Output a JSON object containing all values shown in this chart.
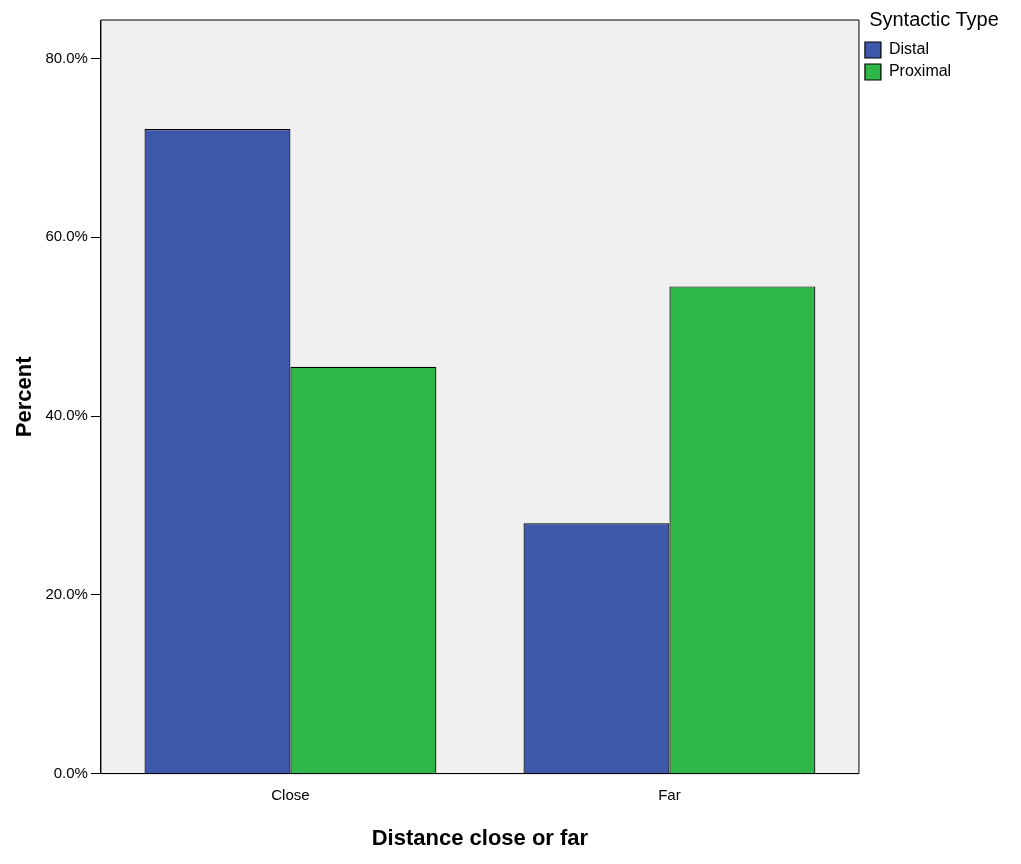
{
  "chart_data": {
    "type": "bar",
    "xlabel": "Distance close or far",
    "ylabel": "Percent",
    "legend_title": "Syntactic Type",
    "legend": "top right",
    "grid": false,
    "categories": [
      "Close",
      "Far"
    ],
    "series": [
      {
        "name": "Distal",
        "color": "#3e58ac",
        "values": [
          72.1,
          28.0
        ]
      },
      {
        "name": "Proximal",
        "color": "#2eb84a",
        "values": [
          45.5,
          54.5
        ]
      }
    ],
    "ylim": [
      0,
      84.3
    ],
    "yticks": [
      {
        "value": 0,
        "label": "0.0%"
      },
      {
        "value": 20,
        "label": "20.0%"
      },
      {
        "value": 40,
        "label": "40.0%"
      },
      {
        "value": 60,
        "label": "60.0%"
      },
      {
        "value": 80,
        "label": "80.0%"
      }
    ]
  }
}
